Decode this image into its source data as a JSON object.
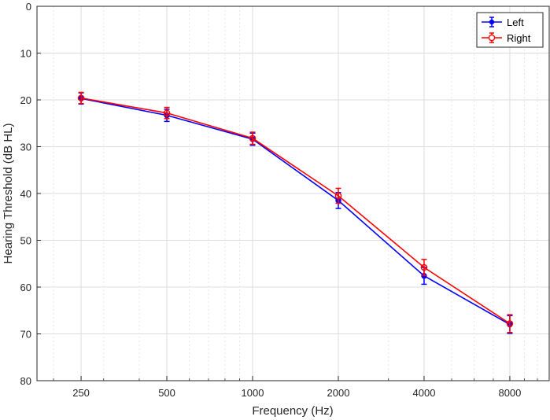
{
  "chart_data": {
    "type": "line",
    "xlabel": "Frequency (Hz)",
    "ylabel": "Hearing Threshold (dB HL)",
    "x_scale": "log",
    "x_ticks": [
      250,
      500,
      1000,
      2000,
      4000,
      8000
    ],
    "x_tick_labels": [
      "250",
      "500",
      "1000",
      "2000",
      "4000",
      "8000"
    ],
    "xlim": [
      175,
      11000
    ],
    "y_reversed": true,
    "ylim": [
      0,
      80
    ],
    "y_ticks": [
      0,
      10,
      20,
      30,
      40,
      50,
      60,
      70,
      80
    ],
    "y_tick_labels": [
      "0",
      "10",
      "20",
      "30",
      "40",
      "50",
      "60",
      "70",
      "80"
    ],
    "grid": true,
    "legend_position": "top-right",
    "x": [
      250,
      500,
      1000,
      2000,
      4000,
      8000
    ],
    "series": [
      {
        "name": "Left",
        "color": "#0000ff",
        "marker": "filled-circle",
        "values": [
          19.7,
          23.3,
          28.4,
          41.5,
          57.6,
          68.0
        ],
        "errors": [
          1.2,
          1.3,
          1.3,
          1.7,
          1.8,
          1.9
        ]
      },
      {
        "name": "Right",
        "color": "#ff0000",
        "marker": "open-circle",
        "values": [
          19.6,
          22.8,
          28.2,
          40.5,
          55.8,
          67.8
        ],
        "errors": [
          1.2,
          1.2,
          1.3,
          1.6,
          1.7,
          1.9
        ]
      }
    ]
  }
}
